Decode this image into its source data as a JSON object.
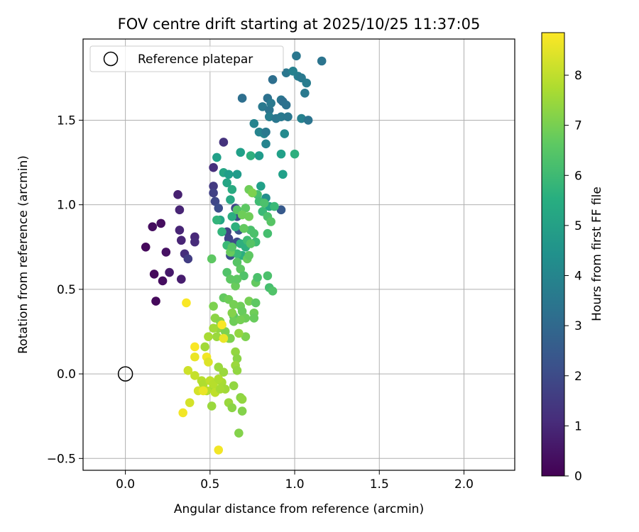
{
  "chart_data": {
    "type": "scatter",
    "title": "FOV centre drift starting at 2025/10/25 11:37:05",
    "xlabel": "Angular distance from reference (arcmin)",
    "ylabel": "Rotation from reference (arcmin)",
    "xlim": [
      -0.25,
      2.3
    ],
    "ylim": [
      -0.57,
      1.98
    ],
    "xticks": [
      0.0,
      0.5,
      1.0,
      1.5,
      2.0
    ],
    "xtick_labels": [
      "0.0",
      "0.5",
      "1.0",
      "1.5",
      "2.0"
    ],
    "yticks": [
      -0.5,
      0.0,
      0.5,
      1.0,
      1.5
    ],
    "ytick_labels": [
      "−0.5",
      "0.0",
      "0.5",
      "1.0",
      "1.5"
    ],
    "grid": true,
    "legend": {
      "position": "top-left",
      "label": "Reference platepar"
    },
    "reference_point": {
      "x": 0.0,
      "y": 0.0
    },
    "colorbar": {
      "label": "Hours from first FF file",
      "range": [
        0,
        8.85
      ],
      "ticks": [
        0,
        1,
        2,
        3,
        4,
        5,
        6,
        7,
        8
      ],
      "tick_labels": [
        "0",
        "1",
        "2",
        "3",
        "4",
        "5",
        "6",
        "7",
        "8"
      ],
      "colormap": "viridis"
    },
    "points": [
      [
        0.12,
        0.75,
        0.2
      ],
      [
        0.16,
        0.87,
        0.3
      ],
      [
        0.17,
        0.59,
        0.2
      ],
      [
        0.18,
        0.43,
        0.2
      ],
      [
        0.21,
        0.89,
        0.3
      ],
      [
        0.22,
        0.55,
        0.3
      ],
      [
        0.24,
        0.72,
        0.4
      ],
      [
        0.26,
        0.6,
        0.6
      ],
      [
        0.31,
        1.06,
        0.8
      ],
      [
        0.32,
        0.97,
        0.9
      ],
      [
        0.32,
        0.85,
        0.9
      ],
      [
        0.33,
        0.79,
        0.9
      ],
      [
        0.33,
        0.56,
        0.7
      ],
      [
        0.35,
        0.71,
        1.2
      ],
      [
        0.37,
        0.68,
        1.6
      ],
      [
        0.41,
        0.81,
        1.0
      ],
      [
        0.41,
        0.78,
        1.1
      ],
      [
        0.52,
        1.22,
        1.2
      ],
      [
        0.52,
        1.11,
        1.5
      ],
      [
        0.52,
        1.07,
        1.7
      ],
      [
        0.53,
        1.02,
        1.9
      ],
      [
        0.55,
        0.98,
        2.1
      ],
      [
        0.58,
        1.37,
        1.3
      ],
      [
        0.6,
        0.84,
        1.7
      ],
      [
        0.61,
        0.8,
        1.8
      ],
      [
        0.62,
        0.7,
        2.1
      ],
      [
        0.63,
        0.77,
        2.0
      ],
      [
        0.65,
        0.98,
        1.9
      ],
      [
        0.66,
        0.78,
        2.0
      ],
      [
        0.66,
        0.93,
        2.0
      ],
      [
        0.67,
        0.85,
        2.3
      ],
      [
        0.69,
        1.63,
        3.2
      ],
      [
        0.76,
        1.48,
        4.0
      ],
      [
        0.79,
        1.43,
        4.0
      ],
      [
        0.81,
        1.58,
        3.6
      ],
      [
        0.82,
        1.42,
        4.0
      ],
      [
        0.83,
        1.36,
        4.0
      ],
      [
        0.84,
        1.63,
        3.3
      ],
      [
        0.85,
        1.56,
        3.4
      ],
      [
        0.85,
        1.52,
        3.8
      ],
      [
        0.86,
        1.6,
        3.6
      ],
      [
        0.87,
        1.74,
        3.2
      ],
      [
        0.89,
        1.51,
        3.5
      ],
      [
        0.92,
        1.62,
        3.5
      ],
      [
        0.92,
        1.52,
        3.6
      ],
      [
        0.93,
        1.61,
        3.2
      ],
      [
        0.95,
        1.59,
        3.3
      ],
      [
        0.95,
        1.78,
        3.5
      ],
      [
        0.96,
        1.52,
        3.5
      ],
      [
        0.99,
        1.79,
        3.9
      ],
      [
        1.01,
        1.88,
        3.5
      ],
      [
        1.02,
        1.76,
        3.8
      ],
      [
        1.04,
        1.75,
        3.6
      ],
      [
        1.04,
        1.51,
        3.9
      ],
      [
        1.06,
        1.66,
        3.6
      ],
      [
        1.07,
        1.72,
        3.7
      ],
      [
        1.08,
        1.5,
        3.4
      ],
      [
        1.16,
        1.85,
        3.4
      ],
      [
        0.92,
        0.97,
        2.5
      ],
      [
        0.94,
        1.42,
        4.2
      ],
      [
        0.83,
        1.43,
        3.6
      ],
      [
        0.54,
        1.28,
        5.0
      ],
      [
        0.58,
        1.19,
        5.2
      ],
      [
        0.6,
        1.13,
        5.2
      ],
      [
        0.61,
        1.18,
        4.9
      ],
      [
        0.62,
        1.03,
        5.3
      ],
      [
        0.63,
        1.09,
        5.4
      ],
      [
        0.66,
        1.18,
        4.8
      ],
      [
        0.68,
        1.31,
        5.0
      ],
      [
        0.74,
        1.29,
        5.6
      ],
      [
        0.79,
        1.29,
        4.8
      ],
      [
        0.8,
        1.11,
        5.0
      ],
      [
        0.83,
        1.04,
        4.4
      ],
      [
        0.85,
        0.99,
        5.2
      ],
      [
        0.92,
        1.3,
        5.0
      ],
      [
        0.93,
        1.18,
        5.0
      ],
      [
        1.0,
        1.3,
        5.6
      ],
      [
        0.63,
        0.93,
        5.5
      ],
      [
        0.65,
        0.87,
        5.6
      ],
      [
        0.68,
        0.77,
        5.6
      ],
      [
        0.69,
        0.7,
        5.5
      ],
      [
        0.56,
        0.91,
        5.2
      ],
      [
        0.54,
        0.91,
        5.8
      ],
      [
        0.57,
        0.84,
        5.8
      ],
      [
        0.6,
        0.76,
        6.0
      ],
      [
        0.63,
        0.72,
        6.2
      ],
      [
        0.66,
        0.71,
        6.0
      ],
      [
        0.71,
        0.75,
        5.6
      ],
      [
        0.72,
        0.79,
        6.1
      ],
      [
        0.74,
        0.85,
        6.3
      ],
      [
        0.76,
        0.83,
        6.3
      ],
      [
        0.77,
        0.78,
        6.1
      ],
      [
        0.78,
        1.06,
        6.2
      ],
      [
        0.79,
        1.02,
        6.1
      ],
      [
        0.81,
        0.96,
        6.0
      ],
      [
        0.82,
        1.01,
        6.3
      ],
      [
        0.84,
        0.93,
        6.3
      ],
      [
        0.86,
        0.9,
        6.5
      ],
      [
        0.88,
        0.99,
        6.0
      ],
      [
        0.51,
        0.68,
        6.6
      ],
      [
        0.6,
        0.6,
        6.4
      ],
      [
        0.62,
        0.72,
        6.8
      ],
      [
        0.63,
        0.75,
        6.5
      ],
      [
        0.66,
        0.66,
        6.5
      ],
      [
        0.68,
        0.62,
        6.6
      ],
      [
        0.7,
        0.58,
        6.4
      ],
      [
        0.72,
        0.68,
        6.8
      ],
      [
        0.73,
        0.7,
        6.6
      ],
      [
        0.74,
        0.77,
        6.5
      ],
      [
        0.77,
        0.54,
        6.7
      ],
      [
        0.78,
        0.57,
        6.3
      ],
      [
        0.84,
        0.58,
        6.3
      ],
      [
        0.85,
        0.51,
        6.2
      ],
      [
        0.87,
        0.49,
        6.4
      ],
      [
        0.84,
        0.83,
        6.2
      ],
      [
        0.65,
        0.52,
        6.8
      ],
      [
        0.66,
        0.56,
        6.6
      ],
      [
        0.68,
        0.4,
        6.9
      ],
      [
        0.69,
        0.37,
        6.8
      ],
      [
        0.71,
        0.33,
        6.9
      ],
      [
        0.73,
        0.43,
        7.0
      ],
      [
        0.76,
        0.36,
        6.9
      ],
      [
        0.76,
        0.33,
        6.8
      ],
      [
        0.77,
        0.42,
        6.6
      ],
      [
        0.58,
        0.45,
        6.7
      ],
      [
        0.61,
        0.44,
        6.9
      ],
      [
        0.62,
        0.56,
        6.6
      ],
      [
        0.64,
        0.34,
        6.6
      ],
      [
        0.64,
        0.31,
        6.9
      ],
      [
        0.68,
        0.32,
        7.0
      ],
      [
        0.71,
        0.22,
        7.1
      ],
      [
        0.73,
        1.09,
        6.9
      ],
      [
        0.75,
        1.07,
        7.1
      ],
      [
        0.7,
        0.86,
        6.7
      ],
      [
        0.71,
        0.98,
        6.6
      ],
      [
        0.73,
        0.93,
        6.9
      ],
      [
        0.66,
        0.97,
        6.5
      ],
      [
        0.69,
        0.94,
        6.9
      ],
      [
        0.52,
        0.4,
        7.1
      ],
      [
        0.53,
        0.33,
        7.3
      ],
      [
        0.55,
        0.27,
        7.4
      ],
      [
        0.56,
        0.31,
        7.2
      ],
      [
        0.57,
        0.29,
        7.4
      ],
      [
        0.59,
        0.25,
        7.1
      ],
      [
        0.61,
        0.21,
        7.3
      ],
      [
        0.62,
        0.21,
        7.1
      ],
      [
        0.63,
        0.36,
        7.2
      ],
      [
        0.64,
        0.41,
        7.0
      ],
      [
        0.52,
        0.27,
        7.6
      ],
      [
        0.54,
        0.22,
        7.5
      ],
      [
        0.49,
        0.22,
        7.7
      ],
      [
        0.47,
        0.16,
        7.6
      ],
      [
        0.65,
        0.13,
        7.4
      ],
      [
        0.66,
        0.09,
        7.3
      ],
      [
        0.65,
        0.05,
        7.5
      ],
      [
        0.66,
        0.02,
        7.4
      ],
      [
        0.67,
        0.24,
        7.4
      ],
      [
        0.55,
        0.04,
        7.5
      ],
      [
        0.58,
        0.01,
        7.5
      ],
      [
        0.57,
        -0.05,
        7.7
      ],
      [
        0.52,
        -0.08,
        7.7
      ],
      [
        0.51,
        -0.19,
        7.5
      ],
      [
        0.59,
        -0.09,
        7.6
      ],
      [
        0.61,
        -0.17,
        7.5
      ],
      [
        0.63,
        -0.2,
        7.3
      ],
      [
        0.64,
        -0.07,
        7.4
      ],
      [
        0.68,
        -0.14,
        7.3
      ],
      [
        0.69,
        -0.15,
        7.4
      ],
      [
        0.69,
        -0.22,
        7.2
      ],
      [
        0.67,
        -0.35,
        7.2
      ],
      [
        0.45,
        -0.04,
        7.9
      ],
      [
        0.46,
        -0.06,
        7.8
      ],
      [
        0.48,
        -0.1,
        7.9
      ],
      [
        0.5,
        -0.04,
        8.0
      ],
      [
        0.52,
        -0.06,
        7.9
      ],
      [
        0.53,
        -0.11,
        8.0
      ],
      [
        0.55,
        -0.03,
        7.8
      ],
      [
        0.56,
        -0.09,
        7.7
      ],
      [
        0.41,
        -0.01,
        8.1
      ],
      [
        0.37,
        0.02,
        8.2
      ],
      [
        0.38,
        -0.17,
        8.3
      ],
      [
        0.43,
        -0.1,
        8.3
      ],
      [
        0.46,
        -0.1,
        8.6
      ],
      [
        0.48,
        0.1,
        8.7
      ],
      [
        0.49,
        0.07,
        8.4
      ],
      [
        0.41,
        0.16,
        8.8
      ],
      [
        0.41,
        0.1,
        8.6
      ],
      [
        0.34,
        -0.23,
        8.7
      ],
      [
        0.36,
        0.42,
        8.8
      ],
      [
        0.55,
        -0.45,
        8.7
      ],
      [
        0.57,
        0.29,
        8.8
      ],
      [
        0.58,
        0.21,
        8.6
      ]
    ]
  }
}
